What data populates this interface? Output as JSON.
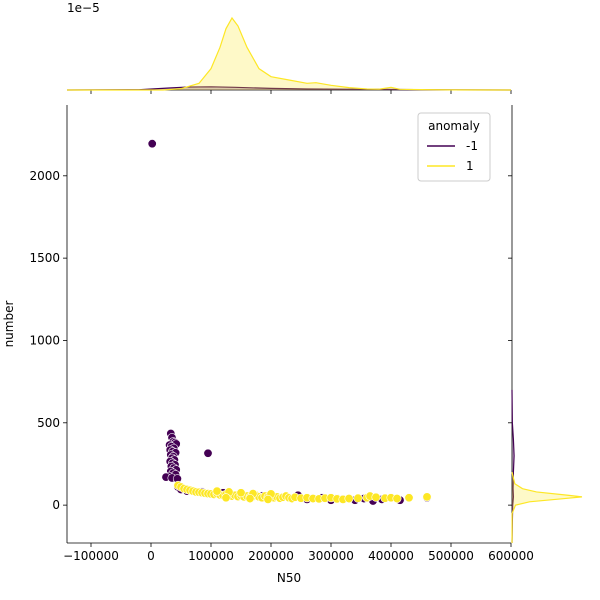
{
  "chart_data": {
    "type": "scatter",
    "xlabel": "N50",
    "ylabel": "number",
    "xlim": [
      -140000,
      600000
    ],
    "ylim": [
      -230000,
      2430
    ],
    "xticks": [
      -100000,
      0,
      100000,
      200000,
      300000,
      400000,
      500000,
      600000
    ],
    "xtick_labels": [
      "−100000",
      "0",
      "100000",
      "200000",
      "300000",
      "400000",
      "500000",
      "600000"
    ],
    "yticks": [
      0,
      500,
      1000,
      1500,
      2000
    ],
    "ytick_labels": [
      "0",
      "500",
      "1000",
      "1500",
      "2000"
    ],
    "top_marginal_offset_text": "1e−5",
    "legend": {
      "title": "anomaly",
      "placement": "top-right",
      "entries": [
        {
          "label": "-1",
          "color": "#440154"
        },
        {
          "label": "1",
          "color": "#fde725"
        }
      ]
    },
    "series": [
      {
        "name": "-1",
        "color": "#440154",
        "points": [
          [
            2000,
            2195
          ],
          [
            33000,
            435
          ],
          [
            35000,
            410
          ],
          [
            37000,
            385
          ],
          [
            40000,
            380
          ],
          [
            42000,
            372
          ],
          [
            31000,
            365
          ],
          [
            34000,
            355
          ],
          [
            38000,
            345
          ],
          [
            32000,
            335
          ],
          [
            36000,
            325
          ],
          [
            41000,
            318
          ],
          [
            33000,
            305
          ],
          [
            37000,
            295
          ],
          [
            35000,
            285
          ],
          [
            39000,
            275
          ],
          [
            32000,
            265
          ],
          [
            36000,
            255
          ],
          [
            40000,
            245
          ],
          [
            34000,
            235
          ],
          [
            38000,
            225
          ],
          [
            42000,
            215
          ],
          [
            33000,
            205
          ],
          [
            37000,
            195
          ],
          [
            41000,
            185
          ],
          [
            30000,
            175
          ],
          [
            25000,
            170
          ],
          [
            35000,
            165
          ],
          [
            44000,
            160
          ],
          [
            95000,
            315
          ],
          [
            45000,
            110
          ],
          [
            50000,
            95
          ],
          [
            60000,
            85
          ],
          [
            85000,
            80
          ],
          [
            120000,
            75
          ],
          [
            150000,
            65
          ],
          [
            185000,
            55
          ],
          [
            215000,
            45
          ],
          [
            245000,
            60
          ],
          [
            260000,
            35
          ],
          [
            285000,
            45
          ],
          [
            300000,
            30
          ],
          [
            310000,
            40
          ],
          [
            320000,
            35
          ],
          [
            340000,
            30
          ],
          [
            355000,
            40
          ],
          [
            370000,
            25
          ],
          [
            385000,
            35
          ],
          [
            415000,
            30
          ],
          [
            460000,
            45
          ]
        ]
      },
      {
        "name": "1",
        "color": "#fde725",
        "points": [
          [
            45000,
            120
          ],
          [
            50000,
            110
          ],
          [
            55000,
            100
          ],
          [
            60000,
            95
          ],
          [
            65000,
            90
          ],
          [
            70000,
            85
          ],
          [
            75000,
            80
          ],
          [
            80000,
            78
          ],
          [
            85000,
            75
          ],
          [
            90000,
            72
          ],
          [
            95000,
            70
          ],
          [
            100000,
            68
          ],
          [
            105000,
            65
          ],
          [
            110000,
            70
          ],
          [
            115000,
            62
          ],
          [
            120000,
            60
          ],
          [
            125000,
            65
          ],
          [
            130000,
            58
          ],
          [
            135000,
            55
          ],
          [
            140000,
            60
          ],
          [
            145000,
            52
          ],
          [
            150000,
            58
          ],
          [
            155000,
            50
          ],
          [
            160000,
            55
          ],
          [
            165000,
            48
          ],
          [
            170000,
            52
          ],
          [
            175000,
            60
          ],
          [
            180000,
            50
          ],
          [
            185000,
            45
          ],
          [
            190000,
            55
          ],
          [
            195000,
            48
          ],
          [
            200000,
            52
          ],
          [
            205000,
            45
          ],
          [
            210000,
            50
          ],
          [
            215000,
            42
          ],
          [
            220000,
            48
          ],
          [
            225000,
            55
          ],
          [
            230000,
            45
          ],
          [
            235000,
            40
          ],
          [
            240000,
            48
          ],
          [
            250000,
            42
          ],
          [
            260000,
            45
          ],
          [
            270000,
            40
          ],
          [
            280000,
            38
          ],
          [
            290000,
            42
          ],
          [
            300000,
            45
          ],
          [
            310000,
            38
          ],
          [
            320000,
            35
          ],
          [
            330000,
            40
          ],
          [
            345000,
            42
          ],
          [
            360000,
            45
          ],
          [
            365000,
            55
          ],
          [
            375000,
            48
          ],
          [
            390000,
            42
          ],
          [
            400000,
            45
          ],
          [
            410000,
            40
          ],
          [
            430000,
            45
          ],
          [
            460000,
            50
          ],
          [
            130000,
            80
          ],
          [
            110000,
            85
          ],
          [
            150000,
            75
          ],
          [
            170000,
            70
          ],
          [
            200000,
            68
          ],
          [
            125000,
            45
          ],
          [
            165000,
            40
          ],
          [
            195000,
            35
          ]
        ]
      }
    ],
    "top_marginal_density": {
      "-1": [
        [
          -140000,
          0.0
        ],
        [
          -20000,
          0.02
        ],
        [
          30000,
          0.15
        ],
        [
          60000,
          0.22
        ],
        [
          100000,
          0.24
        ],
        [
          140000,
          0.2
        ],
        [
          200000,
          0.12
        ],
        [
          260000,
          0.08
        ],
        [
          320000,
          0.06
        ],
        [
          380000,
          0.05
        ],
        [
          440000,
          0.03
        ],
        [
          500000,
          0.01
        ],
        [
          600000,
          0.0
        ]
      ],
      "1": [
        [
          -140000,
          0.0
        ],
        [
          20000,
          0.0
        ],
        [
          50000,
          0.1
        ],
        [
          80000,
          0.5
        ],
        [
          100000,
          1.6
        ],
        [
          115000,
          3.2
        ],
        [
          125000,
          4.6
        ],
        [
          135000,
          5.4
        ],
        [
          145000,
          4.8
        ],
        [
          160000,
          3.2
        ],
        [
          180000,
          1.6
        ],
        [
          200000,
          1.0
        ],
        [
          230000,
          0.75
        ],
        [
          260000,
          0.5
        ],
        [
          275000,
          0.55
        ],
        [
          300000,
          0.35
        ],
        [
          330000,
          0.18
        ],
        [
          360000,
          0.08
        ],
        [
          380000,
          0.06
        ],
        [
          400000,
          0.2
        ],
        [
          415000,
          0.05
        ],
        [
          450000,
          0.03
        ],
        [
          500000,
          0.01
        ],
        [
          600000,
          0.0
        ]
      ]
    },
    "right_marginal_density": {
      "-1": [
        [
          -230,
          0.0
        ],
        [
          -100,
          0.005
        ],
        [
          0,
          0.01
        ],
        [
          50,
          0.02
        ],
        [
          100,
          0.015
        ],
        [
          200,
          0.02
        ],
        [
          300,
          0.03
        ],
        [
          400,
          0.02
        ],
        [
          500,
          0.005
        ],
        [
          700,
          0.0
        ]
      ],
      "1": [
        [
          -230,
          0.0
        ],
        [
          -50,
          0.002
        ],
        [
          0,
          0.05
        ],
        [
          20,
          0.25
        ],
        [
          40,
          0.75
        ],
        [
          50,
          1.0
        ],
        [
          60,
          0.8
        ],
        [
          80,
          0.35
        ],
        [
          100,
          0.15
        ],
        [
          130,
          0.04
        ],
        [
          200,
          0.0
        ]
      ]
    }
  }
}
